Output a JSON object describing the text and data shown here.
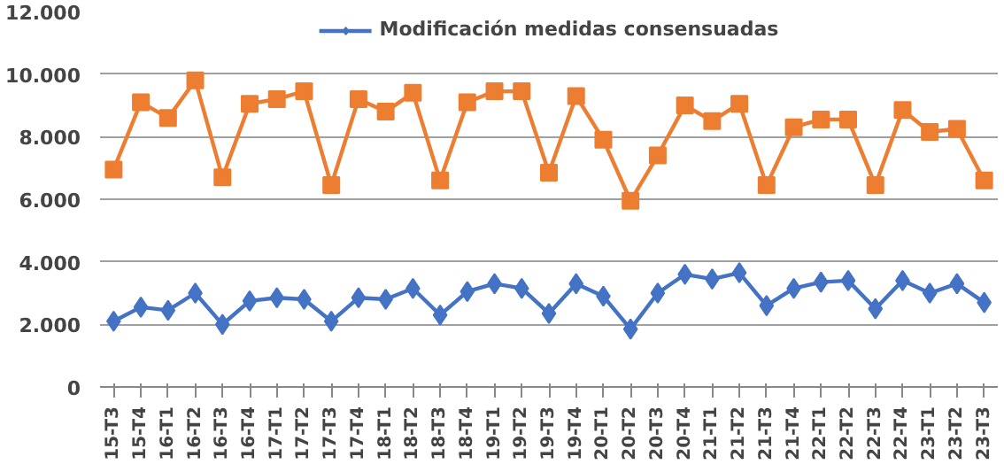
{
  "chart_data": {
    "type": "line",
    "categories": [
      "15-T3",
      "15-T4",
      "16-T1",
      "16-T2",
      "16-T3",
      "16-T4",
      "17-T1",
      "17-T2",
      "17-T3",
      "17-T4",
      "18-T1",
      "18-T2",
      "18-T3",
      "18-T4",
      "19-T1",
      "19-T2",
      "19-T3",
      "19-T4",
      "20-T1",
      "20-T2",
      "20-T3",
      "20-T4",
      "21-T1",
      "21-T2",
      "21-T3",
      "21-T4",
      "22-T1",
      "22-T2",
      "22-T3",
      "22-T4",
      "23-T1",
      "23-T2",
      "23-T3"
    ],
    "series": [
      {
        "name": "Modificación medidas consensuadas",
        "color": "#4472c4",
        "marker": "diamond",
        "values": [
          2100,
          2550,
          2450,
          3000,
          2000,
          2750,
          2850,
          2800,
          2100,
          2850,
          2800,
          3150,
          2300,
          3050,
          3300,
          3150,
          2350,
          3300,
          2900,
          1850,
          3000,
          3600,
          3450,
          3650,
          2600,
          3150,
          3350,
          3400,
          2500,
          3400,
          3000,
          3300,
          2700
        ]
      },
      {
        "color": "#ed7d31",
        "marker": "square",
        "values": [
          6950,
          9100,
          8600,
          9800,
          6700,
          9050,
          9200,
          9450,
          6450,
          9200,
          8800,
          9400,
          6600,
          9100,
          9450,
          9450,
          6850,
          9300,
          7900,
          5950,
          7400,
          9000,
          8500,
          9050,
          6450,
          8300,
          8550,
          8550,
          6450,
          8850,
          8150,
          8250,
          6600
        ]
      }
    ],
    "ylim": [
      0,
      12000
    ],
    "yticks": [
      {
        "value": 0,
        "label": "0"
      },
      {
        "value": 2000,
        "label": "2.000"
      },
      {
        "value": 4000,
        "label": "4.000"
      },
      {
        "value": 6000,
        "label": "6.000"
      },
      {
        "value": 8000,
        "label": "8.000"
      },
      {
        "value": 10000,
        "label": "10.000"
      },
      {
        "value": 12000,
        "label": "12.000"
      }
    ],
    "grid": "y",
    "legend": "top"
  }
}
